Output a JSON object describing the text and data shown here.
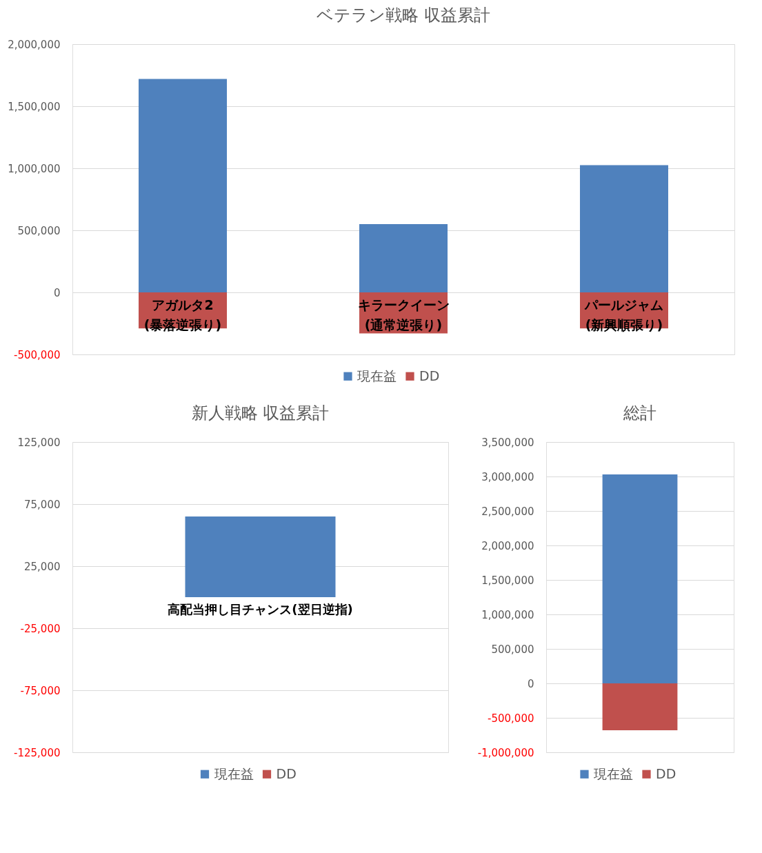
{
  "chart_data": [
    {
      "type": "bar",
      "title": "ベテラン戦略 収益累計",
      "categories": [
        "アガルタ2\n(暴落逆張り)",
        "キラークイーン\n(通常逆張り)",
        "パールジャム\n(新興順張り)"
      ],
      "stacked": true,
      "series": [
        {
          "name": "現在益",
          "color": "#4f81bd",
          "values": [
            1720000,
            550000,
            1025000
          ]
        },
        {
          "name": "DD",
          "color": "#c0504d",
          "values": [
            -290000,
            -330000,
            -290000
          ]
        }
      ],
      "ylim": [
        -500000,
        2000000
      ],
      "yticks": [
        {
          "value": -500000,
          "label": "-500,000"
        },
        0,
        {
          "value": 500000,
          "label": "500,000"
        },
        {
          "value": 1000000,
          "label": "1,000,000"
        },
        {
          "value": 1500000,
          "label": "1,500,000"
        },
        {
          "value": 2000000,
          "label": "2,000,000"
        }
      ],
      "grid": "y",
      "legend": "bottom"
    },
    {
      "type": "bar",
      "title": "新人戦略 収益累計",
      "categories": [
        "高配当押し目チャンス(翌日逆指)"
      ],
      "stacked": true,
      "series": [
        {
          "name": "現在益",
          "color": "#4f81bd",
          "values": [
            65000
          ]
        },
        {
          "name": "DD",
          "color": "#c0504d",
          "values": [
            0
          ]
        }
      ],
      "ylim": [
        -125000,
        125000
      ],
      "yticks": [
        {
          "value": -125000,
          "label": "-125,000"
        },
        {
          "value": -75000,
          "label": "-75,000"
        },
        {
          "value": -25000,
          "label": "-25,000"
        },
        {
          "value": 25000,
          "label": "25,000"
        },
        {
          "value": 75000,
          "label": "75,000"
        },
        {
          "value": 125000,
          "label": "125,000"
        }
      ],
      "grid": "y",
      "legend": "bottom"
    },
    {
      "type": "bar",
      "title": "総計",
      "categories": [
        null
      ],
      "stacked": true,
      "series": [
        {
          "name": "現在益",
          "color": "#4f81bd",
          "values": [
            3030000
          ]
        },
        {
          "name": "DD",
          "color": "#c0504d",
          "values": [
            -680000
          ]
        }
      ],
      "ylim": [
        -1000000,
        3500000
      ],
      "yticks": [
        {
          "value": -1000000,
          "label": "-1,000,000"
        },
        {
          "value": -500000,
          "label": "-500,000"
        },
        0,
        {
          "value": 500000,
          "label": "500,000"
        },
        {
          "value": 1000000,
          "label": "1,000,000"
        },
        {
          "value": 1500000,
          "label": "1,500,000"
        },
        {
          "value": 2000000,
          "label": "2,000,000"
        },
        {
          "value": 2500000,
          "label": "2,500,000"
        },
        {
          "value": 3000000,
          "label": "3,000,000"
        },
        {
          "value": 3500000,
          "label": "3,500,000"
        }
      ],
      "grid": "y",
      "legend": "bottom"
    }
  ]
}
